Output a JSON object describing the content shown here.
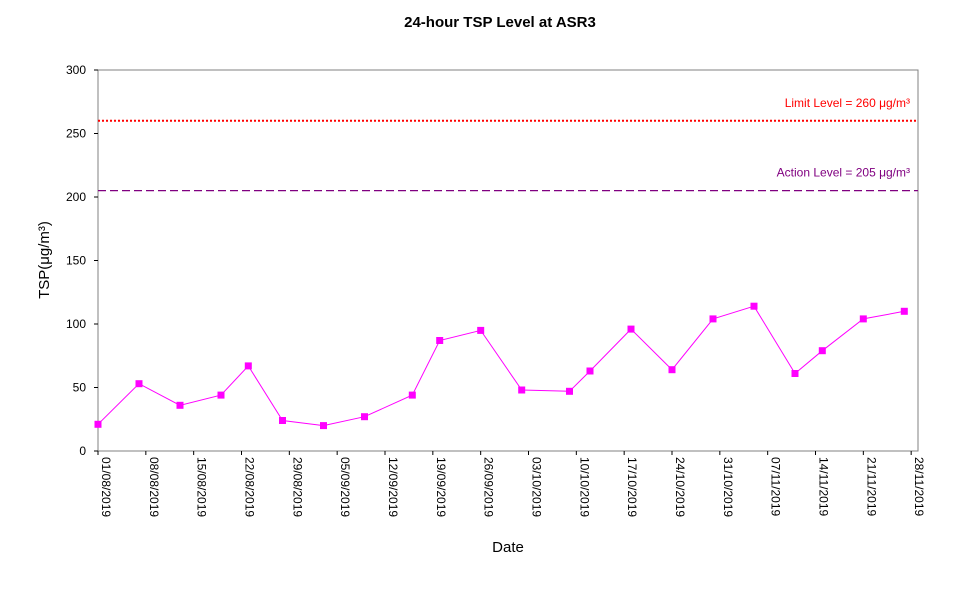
{
  "chart_data": {
    "type": "line",
    "title": "24-hour TSP Level at ASR3",
    "xlabel": "Date",
    "ylabel": "TSP(μg/m³)",
    "ylim": [
      0,
      300
    ],
    "yticks": [
      0,
      50,
      100,
      150,
      200,
      250,
      300
    ],
    "xticks": [
      "01/08/2019",
      "08/08/2019",
      "15/08/2019",
      "22/08/2019",
      "29/08/2019",
      "05/09/2019",
      "12/09/2019",
      "19/09/2019",
      "26/09/2019",
      "03/10/2019",
      "10/10/2019",
      "17/10/2019",
      "24/10/2019",
      "31/10/2019",
      "07/11/2019",
      "14/11/2019",
      "21/11/2019",
      "28/11/2019"
    ],
    "xlim": [
      "01/08/2019",
      "29/11/2019"
    ],
    "grid": false,
    "series": [
      {
        "color": "#ff00ff",
        "x": [
          "01/08/2019",
          "07/08/2019",
          "13/08/2019",
          "19/08/2019",
          "23/08/2019",
          "28/08/2019",
          "03/09/2019",
          "09/09/2019",
          "16/09/2019",
          "20/09/2019",
          "26/09/2019",
          "02/10/2019",
          "09/10/2019",
          "12/10/2019",
          "18/10/2019",
          "24/10/2019",
          "30/10/2019",
          "05/11/2019",
          "11/11/2019",
          "15/11/2019",
          "21/11/2019",
          "27/11/2019"
        ],
        "values": [
          21,
          53,
          36,
          44,
          67,
          24,
          20,
          27,
          44,
          87,
          95,
          48,
          47,
          63,
          96,
          64,
          104,
          114,
          61,
          79,
          104,
          110
        ]
      }
    ],
    "reference_lines": [
      {
        "label": "Limit Level  = 260 μg/m³",
        "value": 260,
        "color": "#ff0000",
        "style": "dotted"
      },
      {
        "label": "Action Level  = 205 μg/m³",
        "value": 205,
        "color": "#800080",
        "style": "dashed"
      }
    ]
  }
}
